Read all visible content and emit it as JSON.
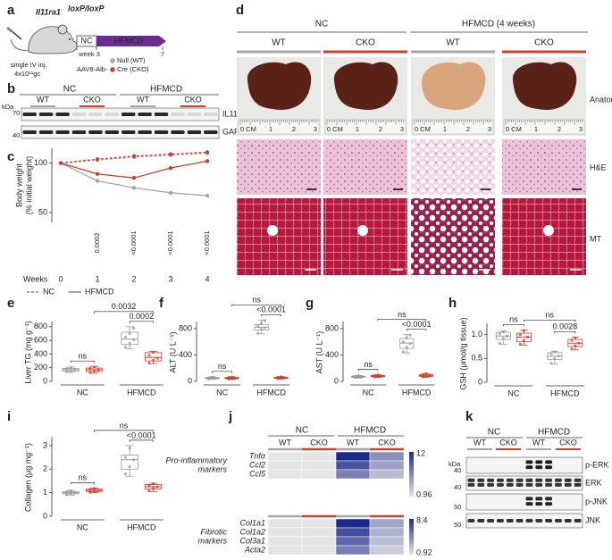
{
  "letters": [
    "a",
    "b",
    "c",
    "d",
    "e",
    "f",
    "g",
    "h",
    "i",
    "j",
    "k"
  ],
  "a": {
    "title": "Il11ra1",
    "title_sup": "loxP/loxP",
    "nc": "NC",
    "hfmcd": "HFMCD",
    "week": "week 3",
    "end": "7",
    "injection": [
      "single IV inj.",
      "4x10¹¹gc"
    ],
    "vector": "AAV8-Alb-",
    "legend": [
      "Null (WT)",
      "Cre (CKO)"
    ]
  },
  "b": {
    "groups": [
      "NC",
      "HFMCD"
    ],
    "lanes": [
      "WT",
      "CKO",
      "WT",
      "CKO"
    ],
    "unit": "kDa",
    "markers": [
      "70",
      "40"
    ],
    "proteins": [
      "IL11RA",
      "GAPDH"
    ]
  },
  "d": {
    "groups": [
      "NC",
      "HFMCD (4 weeks)"
    ],
    "lanes": [
      "WT",
      "CKO",
      "WT",
      "CKO"
    ],
    "rows": [
      "Anatomy",
      "H&E",
      "MT"
    ],
    "ruler": [
      "0",
      "CM",
      "1",
      "2",
      "3"
    ]
  },
  "k": {
    "groups": [
      "NC",
      "HFMCD"
    ],
    "lanes": [
      "WT",
      "CKO",
      "WT",
      "CKO"
    ],
    "unit": "kDa",
    "markers": [
      "40",
      "40",
      "50",
      "50"
    ],
    "proteins": [
      "p-ERK",
      "ERK",
      "p-JNK",
      "JNK"
    ]
  },
  "chart_data": [
    {
      "type": "line",
      "xlabel": "Weeks",
      "ylabel": [
        "Body weight",
        "(% initial weight)"
      ],
      "x": [
        0,
        1,
        2,
        3,
        4
      ],
      "xlim": [
        0,
        4
      ],
      "xticks": [
        0,
        1,
        2,
        3,
        4
      ],
      "ylim": [
        40,
        115
      ],
      "yticks": [
        50,
        100
      ],
      "series": [
        {
          "color": "#a6a6a6",
          "dash": true,
          "values": [
            100,
            103,
            106,
            108,
            110
          ]
        },
        {
          "color": "#c8432b",
          "dash": true,
          "values": [
            100,
            104,
            107,
            109,
            111
          ]
        },
        {
          "color": "#a6a6a6",
          "dash": false,
          "values": [
            100,
            82,
            75,
            70,
            67
          ]
        },
        {
          "color": "#c8432b",
          "dash": false,
          "values": [
            100,
            89,
            85,
            95,
            102
          ]
        }
      ],
      "annotations": [
        "0.0002",
        "<0.0001",
        "<0.0001",
        "<0.0001"
      ],
      "legend": [
        {
          "label": "NC",
          "dash": true
        },
        {
          "label": "HFMCD",
          "dash": false
        }
      ]
    },
    {
      "type": "box",
      "ylabel": "Liver TG (mg g⁻¹)",
      "groups": [
        "NC",
        "HFMCD"
      ],
      "colors": [
        "#9a9a9a",
        "#c8432b"
      ],
      "ylim": [
        0,
        850
      ],
      "yticks": [
        0,
        200,
        400,
        600,
        800
      ],
      "boxes": [
        {
          "box": [
            130,
            150,
            170,
            190,
            210
          ],
          "points": [
            140,
            160,
            175,
            185,
            200
          ]
        },
        {
          "box": [
            120,
            145,
            170,
            195,
            220
          ],
          "points": [
            130,
            155,
            170,
            190,
            210
          ]
        },
        {
          "box": [
            480,
            540,
            620,
            720,
            800
          ],
          "points": [
            500,
            560,
            610,
            650,
            700,
            780
          ]
        },
        {
          "box": [
            260,
            300,
            350,
            420,
            440
          ],
          "points": [
            270,
            310,
            340,
            380,
            430
          ]
        }
      ],
      "comparisons": [
        "ns",
        "0.0032",
        "0.0002"
      ]
    },
    {
      "type": "box",
      "ylabel": "ALT (U L⁻¹)",
      "groups": [
        "NC",
        "HFMCD"
      ],
      "colors": [
        "#9a9a9a",
        "#c8432b"
      ],
      "ylim": [
        0,
        880
      ],
      "yticks": [
        0,
        400,
        800
      ],
      "boxes": [
        {
          "box": [
            30,
            40,
            50,
            60,
            70
          ],
          "points": [
            35,
            45,
            50,
            55,
            65
          ]
        },
        {
          "box": [
            30,
            40,
            50,
            60,
            70
          ],
          "points": [
            35,
            42,
            50,
            58,
            66
          ]
        },
        {
          "box": [
            720,
            780,
            820,
            860,
            930
          ],
          "points": [
            730,
            790,
            815,
            840,
            880,
            920
          ]
        },
        {
          "box": [
            35,
            45,
            55,
            62,
            72
          ],
          "points": [
            40,
            48,
            55,
            60,
            70
          ]
        }
      ],
      "comparisons": [
        "ns",
        "ns",
        "<0.0001"
      ]
    },
    {
      "type": "box",
      "ylabel": "AST (U L⁻¹)",
      "groups": [
        "NC",
        "HFMCD"
      ],
      "colors": [
        "#9a9a9a",
        "#c8432b"
      ],
      "ylim": [
        0,
        880
      ],
      "yticks": [
        0,
        400,
        800
      ],
      "boxes": [
        {
          "box": [
            50,
            60,
            70,
            80,
            90
          ],
          "points": [
            55,
            65,
            70,
            78,
            88
          ]
        },
        {
          "box": [
            60,
            70,
            80,
            90,
            100
          ],
          "points": [
            65,
            72,
            80,
            88,
            96
          ]
        },
        {
          "box": [
            430,
            500,
            580,
            650,
            710
          ],
          "points": [
            450,
            520,
            570,
            600,
            660,
            700
          ]
        },
        {
          "box": [
            60,
            75,
            90,
            105,
            120
          ],
          "points": [
            65,
            80,
            90,
            100,
            115
          ]
        }
      ],
      "comparisons": [
        "ns",
        "ns",
        "<0.0001"
      ]
    },
    {
      "type": "box",
      "ylabel": "GSH (μmol/g tissue)",
      "groups": [
        "NC",
        "HFMCD"
      ],
      "colors": [
        "#9a9a9a",
        "#c8432b"
      ],
      "ylim": [
        0,
        1.2
      ],
      "yticks": [
        0,
        0.5,
        {
          "value": 1,
          "label": "1.0"
        }
      ],
      "boxes": [
        {
          "box": [
            0.8,
            0.9,
            0.97,
            1.05,
            1.08
          ],
          "points": [
            0.82,
            0.92,
            0.97,
            1.02,
            1.06
          ]
        },
        {
          "box": [
            0.78,
            0.85,
            0.95,
            1.03,
            1.1
          ],
          "points": [
            0.8,
            0.88,
            0.95,
            1.0,
            1.08
          ]
        },
        {
          "box": [
            0.38,
            0.48,
            0.55,
            0.62,
            0.65
          ],
          "points": [
            0.4,
            0.5,
            0.55,
            0.6,
            0.64
          ]
        },
        {
          "box": [
            0.68,
            0.75,
            0.82,
            0.9,
            0.95
          ],
          "points": [
            0.7,
            0.77,
            0.82,
            0.88,
            0.93
          ]
        }
      ],
      "comparisons": [
        "ns",
        "ns",
        "0.0028"
      ]
    },
    {
      "type": "box",
      "ylabel": "Collagen (μg mg⁻¹)",
      "groups": [
        "NC",
        "HFMCD"
      ],
      "colors": [
        "#9a9a9a",
        "#c8432b"
      ],
      "ylim": [
        0,
        3.3
      ],
      "yticks": [
        0,
        1,
        2,
        3
      ],
      "boxes": [
        {
          "box": [
            0.9,
            0.95,
            1.0,
            1.05,
            1.1
          ],
          "points": [
            0.92,
            0.97,
            1.0,
            1.03,
            1.08
          ]
        },
        {
          "box": [
            1.0,
            1.05,
            1.1,
            1.15,
            1.2
          ],
          "points": [
            1.02,
            1.07,
            1.1,
            1.13,
            1.18
          ]
        },
        {
          "box": [
            1.7,
            2.0,
            2.4,
            2.6,
            3.0
          ],
          "points": [
            1.8,
            2.1,
            2.4,
            2.5,
            2.9
          ]
        },
        {
          "box": [
            1.05,
            1.15,
            1.25,
            1.35,
            1.4
          ],
          "points": [
            1.08,
            1.18,
            1.25,
            1.3,
            1.38
          ]
        }
      ],
      "comparisons": [
        "ns",
        "ns",
        "<0.0001"
      ]
    },
    {
      "type": "heatmap",
      "groups": [
        "NC",
        "HFMCD"
      ],
      "lanes": [
        "WT",
        "CKO",
        "WT",
        "CKO"
      ],
      "blocks": [
        {
          "name": [
            "Pro-inflammatory",
            "markers"
          ],
          "rows": [
            "Tnfα",
            "Ccl2",
            "Ccl5"
          ],
          "values": [
            [
              1,
              1,
              12,
              6
            ],
            [
              1,
              1,
              9.5,
              5
            ],
            [
              1,
              1,
              7,
              3.5
            ]
          ],
          "scale": [
            0.96,
            12
          ]
        },
        {
          "name": [
            "Fibrotic",
            "markers"
          ],
          "rows": [
            "Col1a1",
            "Col1a2",
            "Col3a1",
            "Acta2"
          ],
          "values": [
            [
              1,
              1,
              8.4,
              3.5
            ],
            [
              1,
              1,
              7,
              3
            ],
            [
              1,
              1,
              6,
              2.5
            ],
            [
              1,
              1,
              5,
              2
            ]
          ],
          "scale": [
            0.92,
            8.4
          ]
        }
      ]
    }
  ]
}
